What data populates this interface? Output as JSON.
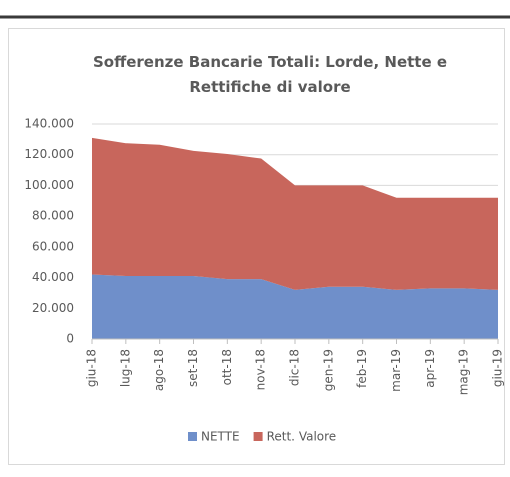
{
  "chart_data": {
    "type": "stacked_area",
    "title": "Sofferenze Bancarie Totali: Lorde, Nette e Rettifiche di valore",
    "categories": [
      "giu-18",
      "lug-18",
      "ago-18",
      "set-18",
      "ott-18",
      "nov-18",
      "dic-18",
      "gen-19",
      "feb-19",
      "mar-19",
      "apr-19",
      "mag-19",
      "giu-19"
    ],
    "series": [
      {
        "name": "NETTE",
        "color": "#6f8fca",
        "values": [
          42000,
          41000,
          41000,
          41000,
          39000,
          39000,
          32000,
          34000,
          34000,
          32000,
          33000,
          33000,
          32000
        ]
      },
      {
        "name": "Rett. Valore",
        "color": "#c8665c",
        "values": [
          89000,
          86500,
          85500,
          81500,
          81500,
          78500,
          68000,
          66000,
          66000,
          60000,
          59000,
          59000,
          60000
        ]
      }
    ],
    "ylim": [
      0,
      140000
    ],
    "yticks": [
      0,
      {
        "value": 20000,
        "label": "20.000"
      },
      {
        "value": 40000,
        "label": "40.000"
      },
      {
        "value": 60000,
        "label": "60.000"
      },
      {
        "value": 80000,
        "label": "80.000"
      },
      {
        "value": 100000,
        "label": "100.000"
      },
      {
        "value": 120000,
        "label": "120.000"
      },
      {
        "value": 140000,
        "label": "140.000"
      }
    ],
    "grid": true,
    "legend": "bottom"
  }
}
